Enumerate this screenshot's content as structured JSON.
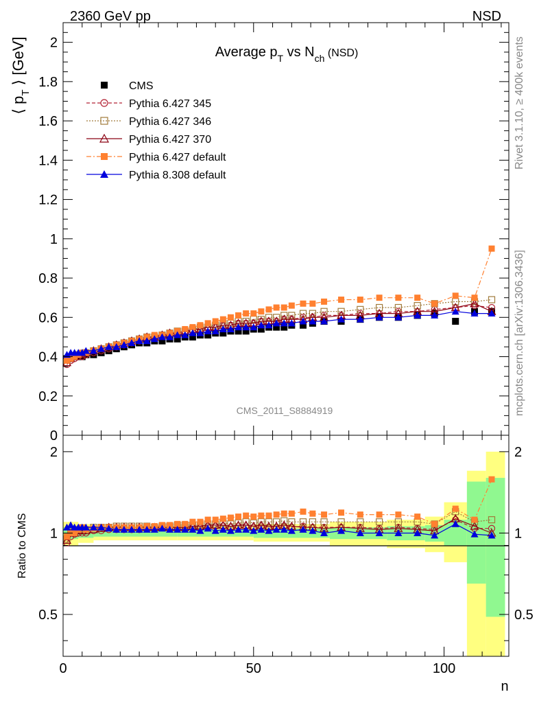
{
  "header": {
    "left": "2360 GeV pp",
    "right": "NSD"
  },
  "side": {
    "top": "Rivet 3.1.10, ≥ 400k events",
    "bottom": "mcplots.cern.ch [arXiv:1306.3436]"
  },
  "watermark": "CMS_2011_S8884919",
  "chart_data": [
    {
      "type": "line",
      "title": "Average p_T vs N_ch (NSD)",
      "ylabel": "⟨ p_T ⟩ [GeV]",
      "xlabel": "n",
      "xlim": [
        0,
        117
      ],
      "ylim": [
        0,
        2.1
      ],
      "xticks": [
        "0",
        "50",
        "100"
      ],
      "yticks": [
        "0",
        "0.2",
        "0.4",
        "0.6",
        "0.8",
        "1",
        "1.2",
        "1.4",
        "1.6",
        "1.8",
        "2"
      ],
      "legend_position": "top-left",
      "colors": {
        "CMS": "#000000",
        "Pythia 6.427 345": "#b22234",
        "Pythia 6.427 346": "#a07a3a",
        "Pythia 6.427 370": "#8b0010",
        "Pythia 6.427 default": "#ff8030",
        "Pythia 8.308 default": "#0000dd"
      },
      "x": [
        1,
        2,
        3,
        4,
        5,
        6,
        8,
        10,
        12,
        14,
        16,
        18,
        20,
        22,
        24,
        26,
        28,
        30,
        32,
        34,
        36,
        38,
        40,
        42,
        44,
        46,
        48,
        50,
        52,
        54,
        56,
        58,
        60,
        63,
        65.5,
        68.5,
        73,
        78,
        83,
        88,
        93,
        97.5,
        103,
        108,
        112.5
      ],
      "series": [
        {
          "name": "CMS",
          "values": [
            0.39,
            0.39,
            0.4,
            0.4,
            0.4,
            0.41,
            0.41,
            0.42,
            0.43,
            0.44,
            0.45,
            0.46,
            0.47,
            0.47,
            0.48,
            0.48,
            0.49,
            0.49,
            0.5,
            0.5,
            0.51,
            0.51,
            0.52,
            0.52,
            0.53,
            0.53,
            0.53,
            0.54,
            0.54,
            0.55,
            0.55,
            0.55,
            0.56,
            0.56,
            0.57,
            0.58,
            0.58,
            0.59,
            0.6,
            0.6,
            0.61,
            0.62,
            0.58,
            0.63,
            0.63
          ]
        },
        {
          "name": "Pythia 6.427 345",
          "values": [
            0.36,
            0.38,
            0.39,
            0.4,
            0.4,
            0.41,
            0.42,
            0.43,
            0.44,
            0.45,
            0.46,
            0.47,
            0.48,
            0.49,
            0.5,
            0.51,
            0.51,
            0.52,
            0.53,
            0.53,
            0.54,
            0.55,
            0.55,
            0.56,
            0.56,
            0.57,
            0.57,
            0.57,
            0.58,
            0.58,
            0.58,
            0.59,
            0.59,
            0.6,
            0.6,
            0.61,
            0.61,
            0.62,
            0.62,
            0.63,
            0.63,
            0.64,
            0.65,
            0.66,
            0.65
          ]
        },
        {
          "name": "Pythia 6.427 346",
          "values": [
            0.37,
            0.39,
            0.4,
            0.41,
            0.41,
            0.42,
            0.43,
            0.44,
            0.45,
            0.46,
            0.47,
            0.48,
            0.49,
            0.5,
            0.5,
            0.51,
            0.52,
            0.53,
            0.53,
            0.54,
            0.55,
            0.55,
            0.56,
            0.57,
            0.57,
            0.58,
            0.58,
            0.59,
            0.59,
            0.6,
            0.6,
            0.61,
            0.61,
            0.62,
            0.62,
            0.63,
            0.63,
            0.64,
            0.65,
            0.65,
            0.66,
            0.67,
            0.68,
            0.68,
            0.69
          ]
        },
        {
          "name": "Pythia 6.427 370",
          "values": [
            0.37,
            0.39,
            0.4,
            0.41,
            0.41,
            0.42,
            0.43,
            0.44,
            0.45,
            0.46,
            0.47,
            0.48,
            0.49,
            0.5,
            0.5,
            0.51,
            0.52,
            0.52,
            0.53,
            0.54,
            0.54,
            0.55,
            0.55,
            0.56,
            0.56,
            0.57,
            0.57,
            0.57,
            0.58,
            0.58,
            0.58,
            0.59,
            0.59,
            0.59,
            0.6,
            0.6,
            0.61,
            0.61,
            0.62,
            0.62,
            0.63,
            0.63,
            0.65,
            0.67,
            0.63
          ]
        },
        {
          "name": "Pythia 6.427 default",
          "values": [
            0.38,
            0.39,
            0.4,
            0.41,
            0.42,
            0.42,
            0.43,
            0.44,
            0.45,
            0.46,
            0.47,
            0.48,
            0.49,
            0.5,
            0.51,
            0.51,
            0.52,
            0.53,
            0.54,
            0.55,
            0.56,
            0.57,
            0.58,
            0.59,
            0.6,
            0.61,
            0.62,
            0.62,
            0.63,
            0.64,
            0.65,
            0.65,
            0.66,
            0.67,
            0.67,
            0.68,
            0.69,
            0.69,
            0.7,
            0.7,
            0.7,
            0.67,
            0.71,
            0.7,
            0.95
          ]
        },
        {
          "name": "Pythia 8.308 default",
          "values": [
            0.41,
            0.42,
            0.42,
            0.42,
            0.42,
            0.43,
            0.43,
            0.44,
            0.45,
            0.45,
            0.46,
            0.47,
            0.48,
            0.48,
            0.49,
            0.5,
            0.5,
            0.51,
            0.51,
            0.52,
            0.52,
            0.53,
            0.53,
            0.54,
            0.54,
            0.55,
            0.55,
            0.55,
            0.56,
            0.56,
            0.57,
            0.57,
            0.57,
            0.58,
            0.58,
            0.58,
            0.59,
            0.59,
            0.6,
            0.6,
            0.61,
            0.61,
            0.63,
            0.62,
            0.62
          ]
        }
      ]
    },
    {
      "type": "line",
      "ylabel": "Ratio to CMS",
      "xlabel": "n",
      "xlim": [
        0,
        117
      ],
      "ylim": [
        0.35,
        2.3
      ],
      "scale": "log",
      "yticks": [
        "0.5",
        "1",
        "2"
      ],
      "reference_line": 1,
      "bands": {
        "x_edges": [
          0,
          4,
          8,
          30,
          50,
          70,
          85,
          95,
          100,
          106,
          111,
          116
        ],
        "green_low": [
          0.95,
          0.96,
          0.97,
          0.97,
          0.96,
          0.95,
          0.94,
          0.93,
          0.9,
          0.65,
          0.49
        ],
        "green_high": [
          1.05,
          1.04,
          1.03,
          1.03,
          1.04,
          1.05,
          1.06,
          1.07,
          1.12,
          1.55,
          1.6
        ],
        "yellow_low": [
          0.9,
          0.92,
          0.94,
          0.94,
          0.93,
          0.9,
          0.88,
          0.85,
          0.78,
          0.35,
          0.35
        ],
        "yellow_high": [
          1.1,
          1.08,
          1.06,
          1.06,
          1.08,
          1.1,
          1.12,
          1.15,
          1.3,
          1.7,
          2.0
        ]
      },
      "series": [
        {
          "name": "Pythia 6.427 345",
          "values": [
            0.92,
            0.97,
            0.99,
            1.0,
            1.0,
            1.0,
            1.02,
            1.02,
            1.03,
            1.03,
            1.03,
            1.03,
            1.03,
            1.04,
            1.04,
            1.05,
            1.05,
            1.05,
            1.05,
            1.05,
            1.05,
            1.06,
            1.06,
            1.06,
            1.05,
            1.06,
            1.06,
            1.05,
            1.06,
            1.05,
            1.05,
            1.06,
            1.05,
            1.06,
            1.05,
            1.05,
            1.05,
            1.05,
            1.04,
            1.05,
            1.04,
            1.03,
            1.12,
            1.04,
            1.04
          ]
        },
        {
          "name": "Pythia 6.427 346",
          "values": [
            0.95,
            1.0,
            1.02,
            1.03,
            1.03,
            1.03,
            1.05,
            1.05,
            1.05,
            1.06,
            1.06,
            1.06,
            1.06,
            1.06,
            1.05,
            1.06,
            1.06,
            1.07,
            1.07,
            1.07,
            1.07,
            1.08,
            1.08,
            1.09,
            1.08,
            1.09,
            1.1,
            1.09,
            1.1,
            1.1,
            1.1,
            1.11,
            1.1,
            1.1,
            1.1,
            1.1,
            1.1,
            1.1,
            1.1,
            1.1,
            1.1,
            1.08,
            1.2,
            1.1,
            1.12
          ]
        },
        {
          "name": "Pythia 6.427 370",
          "values": [
            0.94,
            1.0,
            1.0,
            1.02,
            1.02,
            1.02,
            1.03,
            1.04,
            1.05,
            1.05,
            1.05,
            1.05,
            1.05,
            1.05,
            1.05,
            1.05,
            1.05,
            1.05,
            1.05,
            1.06,
            1.06,
            1.07,
            1.07,
            1.07,
            1.06,
            1.07,
            1.07,
            1.06,
            1.07,
            1.06,
            1.06,
            1.07,
            1.06,
            1.05,
            1.05,
            1.04,
            1.05,
            1.04,
            1.03,
            1.04,
            1.03,
            1.02,
            1.13,
            1.06,
            1.0
          ]
        },
        {
          "name": "Pythia 6.427 default",
          "values": [
            0.97,
            1.0,
            1.0,
            1.03,
            1.05,
            1.03,
            1.04,
            1.05,
            1.05,
            1.05,
            1.05,
            1.05,
            1.05,
            1.06,
            1.06,
            1.07,
            1.07,
            1.08,
            1.08,
            1.1,
            1.1,
            1.12,
            1.12,
            1.13,
            1.14,
            1.15,
            1.16,
            1.15,
            1.16,
            1.16,
            1.17,
            1.18,
            1.18,
            1.2,
            1.18,
            1.17,
            1.19,
            1.17,
            1.17,
            1.17,
            1.15,
            1.08,
            1.23,
            1.12,
            1.58
          ]
        },
        {
          "name": "Pythia 8.308 default",
          "values": [
            1.05,
            1.07,
            1.05,
            1.05,
            1.05,
            1.05,
            1.05,
            1.05,
            1.04,
            1.03,
            1.03,
            1.03,
            1.03,
            1.03,
            1.03,
            1.04,
            1.03,
            1.03,
            1.03,
            1.03,
            1.02,
            1.04,
            1.02,
            1.03,
            1.02,
            1.03,
            1.03,
            1.02,
            1.03,
            1.02,
            1.03,
            1.03,
            1.02,
            1.03,
            1.02,
            1.0,
            1.02,
            1.0,
            1.0,
            1.0,
            1.0,
            0.98,
            1.08,
            0.99,
            0.98
          ]
        }
      ]
    }
  ]
}
